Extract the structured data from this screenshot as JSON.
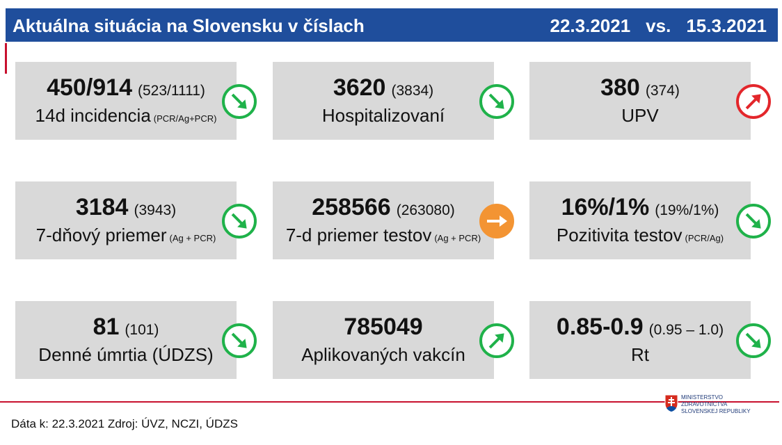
{
  "header": {
    "title": "Aktuálna situácia na Slovensku v číslach",
    "date_current": "22.3.2021",
    "vs": "vs.",
    "date_previous": "15.3.2021"
  },
  "cards": [
    {
      "value": "450/914",
      "previous": "(523/1111)",
      "label": "14d incidencia",
      "note": "(PCR/Ag+PCR)",
      "trend": "down",
      "trend_color": "green"
    },
    {
      "value": "3620",
      "previous": "(3834)",
      "label": "Hospitalizovaní",
      "trend": "down",
      "trend_color": "green"
    },
    {
      "value": "380",
      "previous": "(374)",
      "label": "UPV",
      "trend": "up",
      "trend_color": "red"
    },
    {
      "value": "3184",
      "previous": "(3943)",
      "label": "7-dňový priemer",
      "note": "(Ag + PCR)",
      "trend": "down",
      "trend_color": "green"
    },
    {
      "value": "258566",
      "previous": "(263080)",
      "label": "7-d priemer testov",
      "note": "(Ag + PCR)",
      "trend": "flat",
      "trend_color": "orange"
    },
    {
      "value": "16%/1%",
      "previous": "(19%/1%)",
      "label": "Pozitivita testov",
      "note": "(PCR/Ag)",
      "trend": "down",
      "trend_color": "green"
    },
    {
      "value": "81",
      "previous": "(101)",
      "label": "Denné úmrtia (ÚDZS)",
      "trend": "down",
      "trend_color": "green"
    },
    {
      "value": "785049",
      "label": "Aplikovaných vakcín",
      "trend": "up",
      "trend_color": "green"
    },
    {
      "value": "0.85-0.9",
      "previous": "(0.95 – 1.0)",
      "label": "Rt",
      "trend": "down",
      "trend_color": "green"
    }
  ],
  "footer": {
    "source": "Dáta k: 22.3.2021 Zdroj: ÚVZ, NCZI, ÚDZS",
    "ministry": [
      "MINISTERSTVO",
      "ZDRAVOTNÍCTVA",
      "SLOVENSKEJ REPUBLIKY"
    ]
  }
}
